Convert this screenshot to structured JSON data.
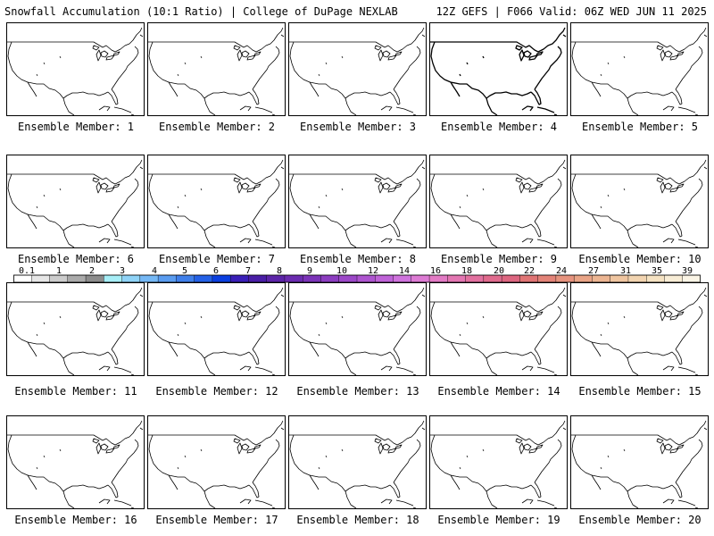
{
  "header": {
    "left_title": "Snowfall Accumulation (10:1 Ratio) | College of DuPage NEXLAB",
    "right_title": "12Z GEFS | F066 Valid: 06Z WED JUN 11 2025"
  },
  "map": {
    "region": "United States",
    "line_color": "#000000",
    "panel_border_color": "#000000"
  },
  "members": [
    {
      "label": "Ensemble Member: 1"
    },
    {
      "label": "Ensemble Member: 2"
    },
    {
      "label": "Ensemble Member: 3"
    },
    {
      "label": "Ensemble Member: 4"
    },
    {
      "label": "Ensemble Member: 5"
    },
    {
      "label": "Ensemble Member: 6"
    },
    {
      "label": "Ensemble Member: 7"
    },
    {
      "label": "Ensemble Member: 8"
    },
    {
      "label": "Ensemble Member: 9"
    },
    {
      "label": "Ensemble Member: 10"
    },
    {
      "label": "Ensemble Member: 11"
    },
    {
      "label": "Ensemble Member: 12"
    },
    {
      "label": "Ensemble Member: 13"
    },
    {
      "label": "Ensemble Member: 14"
    },
    {
      "label": "Ensemble Member: 15"
    },
    {
      "label": "Ensemble Member: 16"
    },
    {
      "label": "Ensemble Member: 17"
    },
    {
      "label": "Ensemble Member: 18"
    },
    {
      "label": "Ensemble Member: 19"
    },
    {
      "label": "Ensemble Member: 20"
    }
  ],
  "legend": {
    "labels": [
      "0.1",
      "1",
      "2",
      "3",
      "4",
      "5",
      "6",
      "7",
      "8",
      "9",
      "10",
      "12",
      "14",
      "16",
      "18",
      "20",
      "22",
      "24",
      "27",
      "31",
      "35",
      "39"
    ],
    "colors": [
      "#ffffff",
      "#e6e6e6",
      "#cccccc",
      "#aaaaaa",
      "#8c8c8c",
      "#a7eef7",
      "#8fd3f7",
      "#75b8f5",
      "#5a9cf0",
      "#3f7fea",
      "#2461e6",
      "#0b3fe0",
      "#3a1fb8",
      "#4a1ea6",
      "#5c24a8",
      "#6b2bb0",
      "#7b33b8",
      "#8c3dc0",
      "#9c48c8",
      "#ae55d0",
      "#bf63d8",
      "#cf73dd",
      "#dd7bd4",
      "#e27ac4",
      "#e376b2",
      "#e2709f",
      "#e06a8d",
      "#dd6680",
      "#e07474",
      "#e38378",
      "#e6937e",
      "#e9a486",
      "#ecb592",
      "#efc5a0",
      "#f2d4b0",
      "#f5e2c2",
      "#f8edd6",
      "#fbf5e6"
    ]
  }
}
